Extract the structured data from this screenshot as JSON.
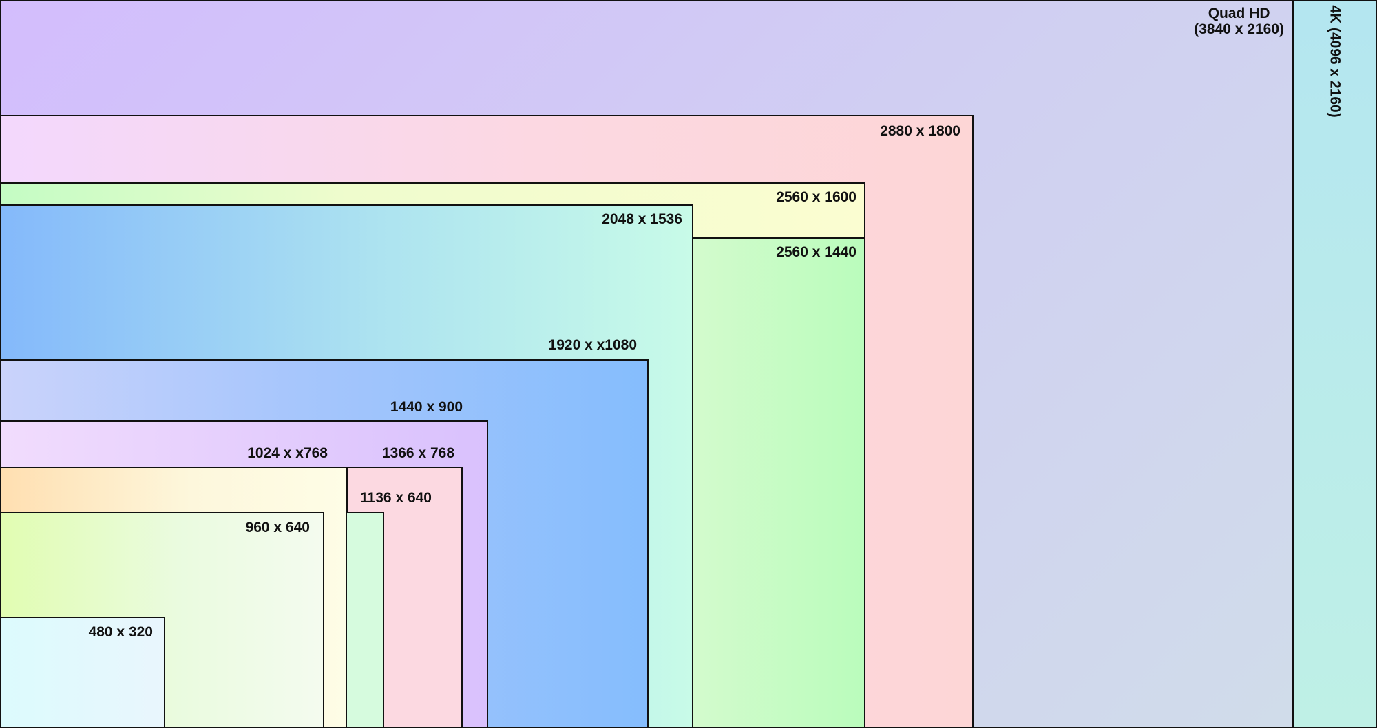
{
  "resolutions": [
    {
      "id": "4k",
      "label": "4K (4096 x 2160)",
      "color": "#b4e6f0"
    },
    {
      "id": "qhd",
      "label": "Quad HD\n(3840 x 2160)",
      "color": "#d3bdfd"
    },
    {
      "id": "2880",
      "label": "2880 x 1800",
      "color": "#fdd6d6"
    },
    {
      "id": "2560a",
      "label": "2560 x 1600",
      "color": "#fbfdd1"
    },
    {
      "id": "2560b",
      "label": "2560 x 1440",
      "color": "#bafcbc"
    },
    {
      "id": "2048",
      "label": "2048 x 1536",
      "color": "#84b9fb"
    },
    {
      "id": "1920",
      "label": "1920 x x1080",
      "color": "#85bdfd"
    },
    {
      "id": "1440",
      "label": "1440 x 900",
      "color": "#d9c1fd"
    },
    {
      "id": "1366",
      "label": "1366 x 768",
      "color": "#fcd9e1"
    },
    {
      "id": "1024",
      "label": "1024 x x768",
      "color": "#ffdfb1"
    },
    {
      "id": "1136",
      "label": "1136 x 640",
      "color": "#d6fbde"
    },
    {
      "id": "960",
      "label": "960 x 640",
      "color": "#e1fdb2"
    },
    {
      "id": "480",
      "label": "480 x 320",
      "color": "#dcfbfd"
    }
  ]
}
